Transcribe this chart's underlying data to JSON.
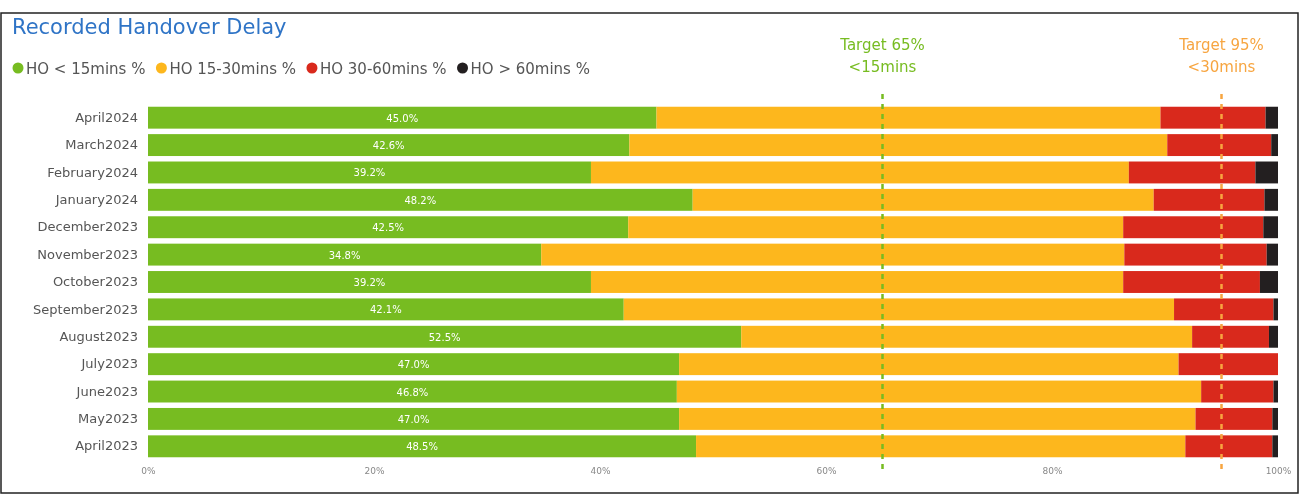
{
  "chart_data": {
    "type": "bar",
    "orientation": "horizontal",
    "stacked": true,
    "title": "Recorded Handover Delay",
    "categories": [
      "April2024",
      "March2024",
      "February2024",
      "January2024",
      "December2023",
      "November2023",
      "October2023",
      "September2023",
      "August2023",
      "July2023",
      "June2023",
      "May2023",
      "April2023"
    ],
    "series": [
      {
        "name": "HO < 15mins %",
        "color": "#77bc21",
        "values": [
          45.0,
          42.6,
          39.2,
          48.2,
          42.5,
          34.8,
          39.2,
          42.1,
          52.5,
          47.0,
          46.8,
          47.0,
          48.5
        ],
        "value_labels": [
          "45.0%",
          "42.6%",
          "39.2%",
          "48.2%",
          "42.5%",
          "34.8%",
          "39.2%",
          "42.1%",
          "52.5%",
          "47.0%",
          "46.8%",
          "47.0%",
          "48.5%"
        ]
      },
      {
        "name": "HO 15-30mins %",
        "color": "#fdb71d",
        "values": [
          44.6,
          47.6,
          47.6,
          40.8,
          43.8,
          51.6,
          47.1,
          48.7,
          39.9,
          44.2,
          46.4,
          45.7,
          43.3
        ]
      },
      {
        "name": "HO 30-60mins %",
        "color": "#d9291c",
        "values": [
          9.3,
          9.2,
          11.2,
          9.8,
          12.4,
          12.6,
          12.1,
          8.8,
          6.8,
          8.8,
          6.4,
          6.8,
          7.7
        ]
      },
      {
        "name": "HO > 60mins %",
        "color": "#231f20",
        "values": [
          1.1,
          0.6,
          2.0,
          1.2,
          1.3,
          1.0,
          1.6,
          0.4,
          0.8,
          0,
          0.4,
          0.5,
          0.5
        ]
      }
    ],
    "xlim": [
      0,
      100
    ],
    "xticks": [
      {
        "value": 0,
        "label": "0%"
      },
      {
        "value": 20,
        "label": "20%"
      },
      {
        "value": 40,
        "label": "40%"
      },
      {
        "value": 60,
        "label": "60%"
      },
      {
        "value": 80,
        "label": "80%"
      },
      {
        "value": 100,
        "label": "100%"
      }
    ],
    "ref_lines": [
      {
        "axis": "x",
        "value": 65,
        "label": "Target 65%\n<15mins",
        "color": "#77bc21",
        "line_style": "dashed"
      },
      {
        "axis": "x",
        "value": 95,
        "label": "Target 95%\n<30mins",
        "color": "#f7a540",
        "line_style": "dashed"
      }
    ],
    "legend": "top left"
  }
}
